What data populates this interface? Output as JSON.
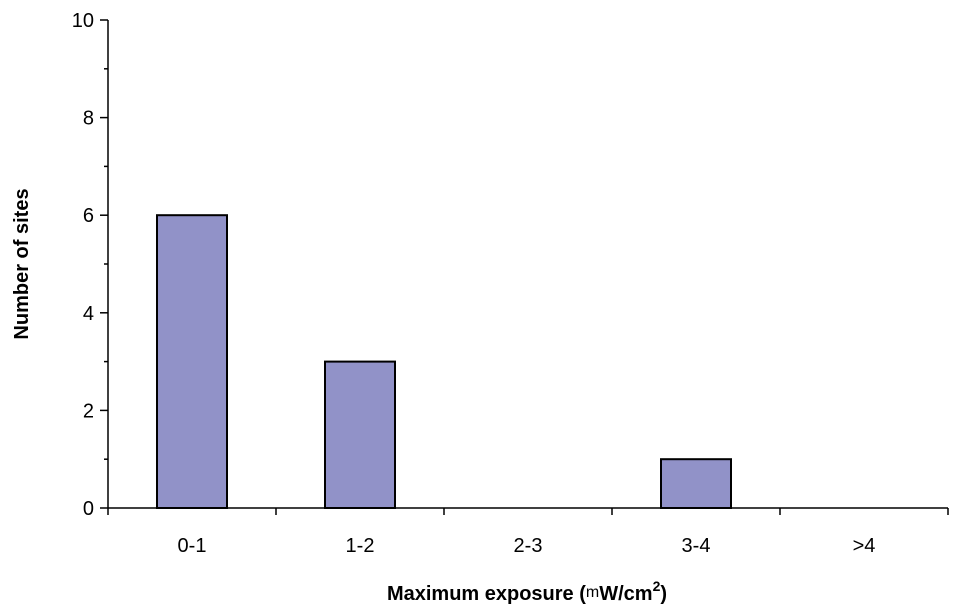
{
  "chart_data": {
    "type": "bar",
    "categories": [
      "0-1",
      "1-2",
      "2-3",
      "3-4",
      ">4"
    ],
    "values": [
      6,
      3,
      0,
      1,
      0
    ],
    "xlabel": "Maximum exposure (mW/cm2)",
    "xlabel_parts": {
      "prefix": "Maximum exposure (",
      "unit_symbol": "m",
      "unit_rest": "W/cm",
      "superscript": "2",
      "suffix": ")"
    },
    "ylabel": "Number of sites",
    "ylim": [
      0,
      10
    ],
    "yticks": [
      "0",
      "2",
      "4",
      "6",
      "8",
      "10"
    ],
    "bar_color": "#9192c8",
    "grid": false
  }
}
